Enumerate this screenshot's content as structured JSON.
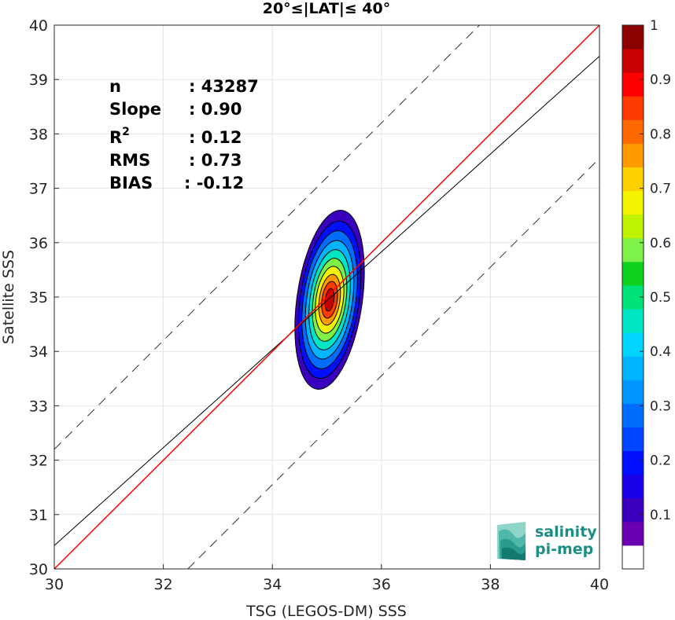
{
  "chart_data": {
    "type": "contour-density",
    "title": "20°≤|LAT|≤ 40°",
    "xlabel": "TSG (LEGOS-DM) SSS",
    "ylabel": "Satellite SSS",
    "xlim": [
      30,
      40
    ],
    "ylim": [
      30,
      40
    ],
    "xticks": [
      "30",
      "32",
      "34",
      "36",
      "38",
      "40"
    ],
    "yticks": [
      "30",
      "31",
      "32",
      "33",
      "34",
      "35",
      "36",
      "37",
      "38",
      "39",
      "40"
    ],
    "grid": true,
    "stats": [
      {
        "label": "n",
        "value": ": 43287"
      },
      {
        "label": "Slope",
        "value": ": 0.90"
      },
      {
        "label": "R",
        "sup": "2",
        "value": ": 0.12"
      },
      {
        "label": "RMS",
        "value": ": 0.73"
      },
      {
        "label": "BIAS",
        "value": ": -0.12"
      }
    ],
    "lines": {
      "identity": {
        "slope": 1.0,
        "intercept": 0.0,
        "color": "#ff0000"
      },
      "fit": {
        "slope": 0.9,
        "intercept": 3.43,
        "color": "#000000"
      },
      "upper_bound": {
        "slope": 1.0,
        "intercept": 2.2,
        "style": "dashed"
      },
      "lower_bound": {
        "slope": 1.0,
        "intercept": -2.45,
        "style": "dashed"
      }
    },
    "density_center": {
      "x": 35.05,
      "y": 34.95
    },
    "contour_levels": [
      {
        "level": 0.05,
        "rx": 0.6,
        "ry": 1.66,
        "color": "#3b00bd"
      },
      {
        "level": 0.15,
        "rx": 0.54,
        "ry": 1.46,
        "color": "#0010ff"
      },
      {
        "level": 0.25,
        "rx": 0.48,
        "ry": 1.28,
        "color": "#006dff"
      },
      {
        "level": 0.35,
        "rx": 0.42,
        "ry": 1.1,
        "color": "#00b4ff"
      },
      {
        "level": 0.45,
        "rx": 0.36,
        "ry": 0.93,
        "color": "#00e5c4"
      },
      {
        "level": 0.55,
        "rx": 0.3,
        "ry": 0.77,
        "color": "#7ff24a"
      },
      {
        "level": 0.65,
        "rx": 0.25,
        "ry": 0.62,
        "color": "#f4f400"
      },
      {
        "level": 0.75,
        "rx": 0.19,
        "ry": 0.47,
        "color": "#ff9a00"
      },
      {
        "level": 0.85,
        "rx": 0.14,
        "ry": 0.34,
        "color": "#ff3c00"
      },
      {
        "level": 0.95,
        "rx": 0.08,
        "ry": 0.21,
        "color": "#c80000"
      }
    ],
    "colorbar": {
      "ticks": [
        "0.1",
        "0.2",
        "0.3",
        "0.4",
        "0.5",
        "0.6",
        "0.7",
        "0.8",
        "0.9",
        "1"
      ],
      "colors": [
        "#ffffff",
        "#6a00b0",
        "#3b00bd",
        "#1a00e6",
        "#0010ff",
        "#0045ff",
        "#006dff",
        "#0096ff",
        "#00b4ff",
        "#00d4ff",
        "#00e5c4",
        "#00e27a",
        "#0fd21e",
        "#7ff24a",
        "#bff200",
        "#f4f400",
        "#ffd000",
        "#ff9a00",
        "#ff6a00",
        "#ff3c00",
        "#ff0000",
        "#c80000",
        "#8b0000"
      ]
    }
  },
  "logo": {
    "line1": "salinity",
    "line2": "pi-mep"
  }
}
